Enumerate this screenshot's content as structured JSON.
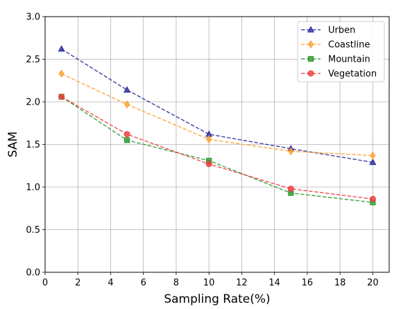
{
  "chart_data": {
    "type": "line",
    "title": "",
    "xlabel": "Sampling Rate(%)",
    "ylabel": "SAM",
    "xlim": [
      0,
      21
    ],
    "ylim": [
      0,
      3.0
    ],
    "xticks": [
      0,
      2,
      4,
      6,
      8,
      10,
      12,
      14,
      16,
      18,
      20
    ],
    "xtick_labels": [
      "0",
      "2",
      "4",
      "6",
      "8",
      "10",
      "12",
      "14",
      "16",
      "18",
      "20"
    ],
    "yticks": [
      0,
      0.5,
      1.0,
      1.5,
      2.0,
      2.5,
      3.0
    ],
    "ytick_labels": [
      "0.0",
      "0.5",
      "1.0",
      "1.5",
      "2.0",
      "2.5",
      "3.0"
    ],
    "grid": true,
    "legend_position": "top-right",
    "x": [
      1,
      5,
      10,
      15,
      20
    ],
    "series": [
      {
        "name": "Urben",
        "values": [
          2.62,
          2.14,
          1.62,
          1.45,
          1.29
        ],
        "color": "#2a2a9a",
        "marker": "triangle"
      },
      {
        "name": "Coastline",
        "values": [
          2.33,
          1.97,
          1.56,
          1.42,
          1.37
        ],
        "color": "#ffa030",
        "marker": "diamond"
      },
      {
        "name": "Mountain",
        "values": [
          2.06,
          1.55,
          1.31,
          0.93,
          0.82
        ],
        "color": "#2e962e",
        "marker": "square"
      },
      {
        "name": "Vegetation",
        "values": [
          2.06,
          1.62,
          1.27,
          0.98,
          0.86
        ],
        "color": "#f03c3c",
        "marker": "circle"
      }
    ]
  }
}
